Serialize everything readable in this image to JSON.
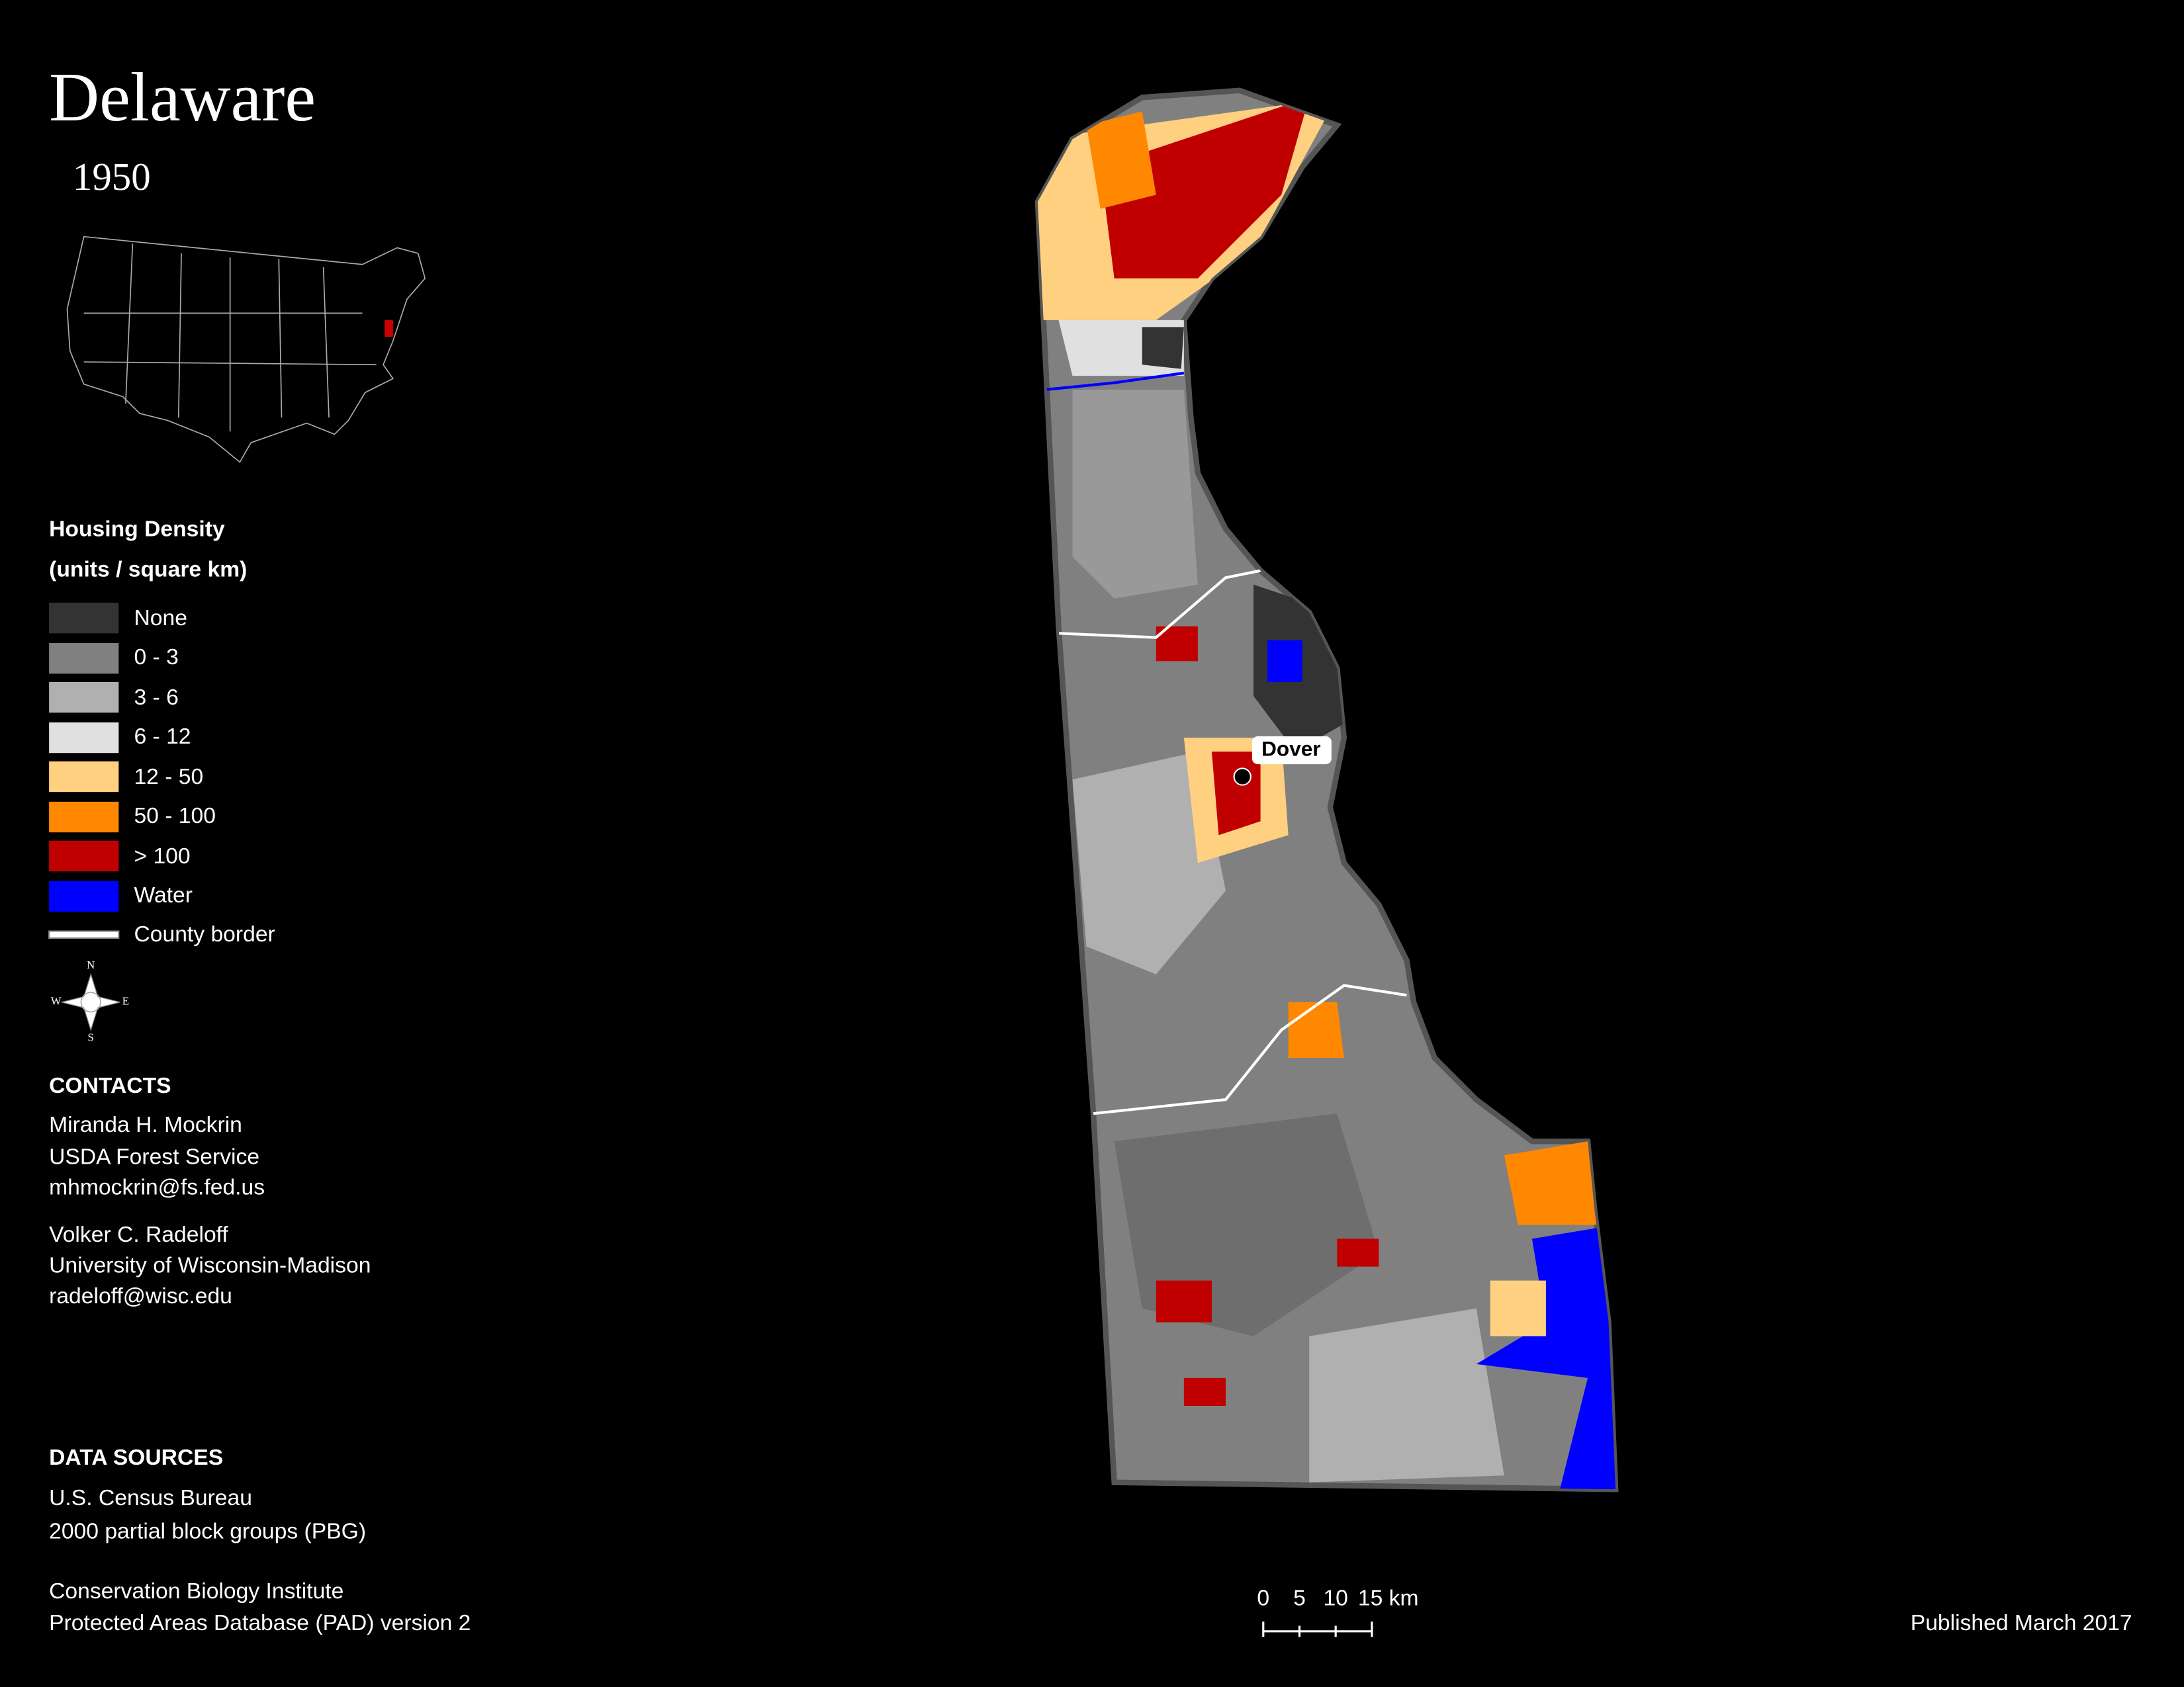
{
  "header": {
    "title": "Delaware",
    "year": "1950"
  },
  "legend": {
    "title": "Housing Density",
    "subtitle": "(units / square km)",
    "items": [
      "None",
      "0 - 3",
      "3 - 6",
      "6 - 12",
      "12 - 50",
      "50 - 100",
      "> 100",
      "Water",
      "County border"
    ]
  },
  "compass": {
    "n": "N",
    "e": "E",
    "s": "S",
    "w": "W"
  },
  "contacts": {
    "heading": "CONTACTS",
    "people": [
      [
        "Miranda H. Mockrin",
        "USDA Forest Service",
        "mhmockrin@fs.fed.us"
      ],
      [
        "Volker C. Radeloff",
        "University of Wisconsin-Madison",
        "radeloff@wisc.edu"
      ]
    ]
  },
  "data_sources": {
    "heading": "DATA SOURCES",
    "sources": [
      [
        "U.S. Census Bureau",
        "2000 partial block groups (PBG)"
      ],
      [
        "Conservation Biology Institute",
        "Protected Areas Database (PAD) version 2"
      ]
    ]
  },
  "map": {
    "city": "Dover"
  },
  "scale_bar": [
    "0",
    "5",
    "10",
    "15 km"
  ],
  "footer": {
    "published": "Published March 2017"
  }
}
